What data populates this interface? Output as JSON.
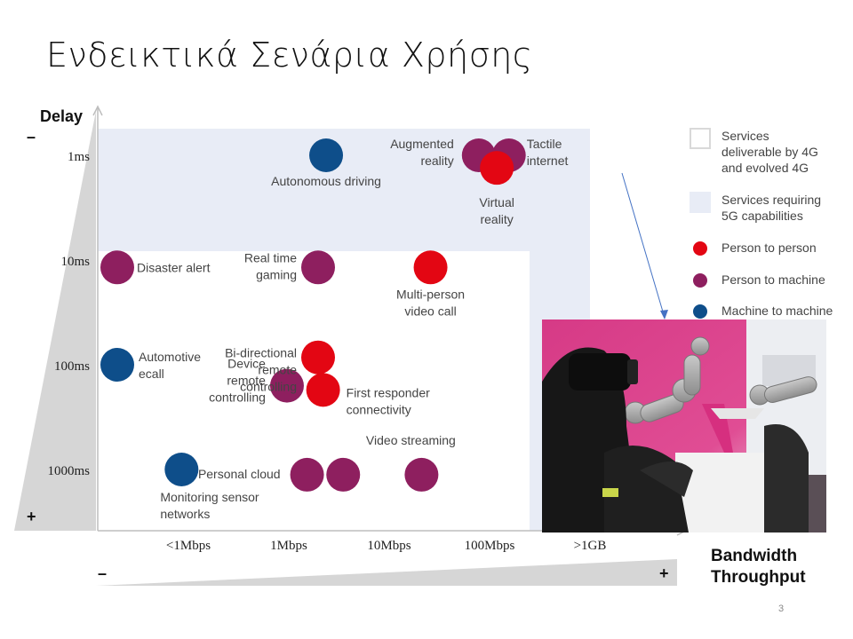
{
  "slide": {
    "title": "Ενδεικτικά Σενάρια Χρήσης",
    "page_number": "3"
  },
  "colors": {
    "person_to_person": "#e30613",
    "person_to_machine": "#8e1f5f",
    "machine_to_machine": "#0e4e8a",
    "zone_5g": "#e8ecf6",
    "wedge": "#d6d6d6"
  },
  "legend": [
    {
      "type": "box-outline",
      "label": "Services\ndeliverable by 4G\nand evolved 4G"
    },
    {
      "type": "box-filled",
      "label": "Services requiring\n5G capabilities"
    },
    {
      "type": "dot",
      "color_key": "person_to_person",
      "label": "Person to person"
    },
    {
      "type": "dot",
      "color_key": "person_to_machine",
      "label": "Person to machine"
    },
    {
      "type": "dot",
      "color_key": "machine_to_machine",
      "label": "Machine to machine"
    }
  ],
  "photo": {
    "description_icon": "vr-headset-robot-photo"
  },
  "chart_data": {
    "type": "scatter",
    "title": "",
    "ylabel": "Delay",
    "xlabel": "Bandwidth\nThroughput",
    "y_axis_minus": "–",
    "y_axis_plus": "+",
    "x_axis_minus": "–",
    "x_axis_plus": "+",
    "categories_x": [
      "<1Mbps",
      "1Mbps",
      "10Mbps",
      "100Mbps",
      ">1GB"
    ],
    "categories_y": [
      "1ms",
      "10ms",
      "100ms",
      "1000ms"
    ],
    "shaded_region_5g": {
      "delay_to": "10ms",
      "throughput_to": ">1GB"
    },
    "points": [
      {
        "label": "Autonomous driving",
        "x": 2.08,
        "y": 0.0,
        "category": "machine_to_machine"
      },
      {
        "label": "Augmented\nreality",
        "x": 3.6,
        "y": 0.0,
        "category": "person_to_machine"
      },
      {
        "label": "Tactile\ninternet",
        "x": 3.9,
        "y": 0.0,
        "category": "person_to_machine"
      },
      {
        "label": "Virtual\nreality",
        "x": 3.78,
        "y": 0.12,
        "category": "person_to_person"
      },
      {
        "label": "Disaster alert",
        "x": 0.0,
        "y": 1.07,
        "category": "person_to_machine"
      },
      {
        "label": "Real time\ngaming",
        "x": 2.0,
        "y": 1.07,
        "category": "person_to_machine"
      },
      {
        "label": "Multi-person\nvideo call",
        "x": 3.12,
        "y": 1.07,
        "category": "person_to_person"
      },
      {
        "label": "Automotive\necall",
        "x": 0.0,
        "y": 2.0,
        "category": "machine_to_machine"
      },
      {
        "label": "Device\nremote\ncontrolling",
        "x": 1.69,
        "y": 2.2,
        "category": "person_to_machine"
      },
      {
        "label": "Bi-directional\nremote\ncontrolling",
        "x": 2.0,
        "y": 1.93,
        "category": "person_to_person"
      },
      {
        "label": "First responder\nconnectivity",
        "x": 2.05,
        "y": 2.24,
        "category": "person_to_person"
      },
      {
        "label": "Monitoring sensor\nnetworks",
        "x": 0.64,
        "y": 3.0,
        "category": "machine_to_machine"
      },
      {
        "label": "Personal cloud",
        "x": 1.89,
        "y": 3.05,
        "category": "person_to_machine"
      },
      {
        "label": "",
        "x": 2.25,
        "y": 3.05,
        "category": "person_to_machine"
      },
      {
        "label": "Video streaming",
        "x": 3.03,
        "y": 3.05,
        "category": "person_to_machine"
      }
    ]
  }
}
